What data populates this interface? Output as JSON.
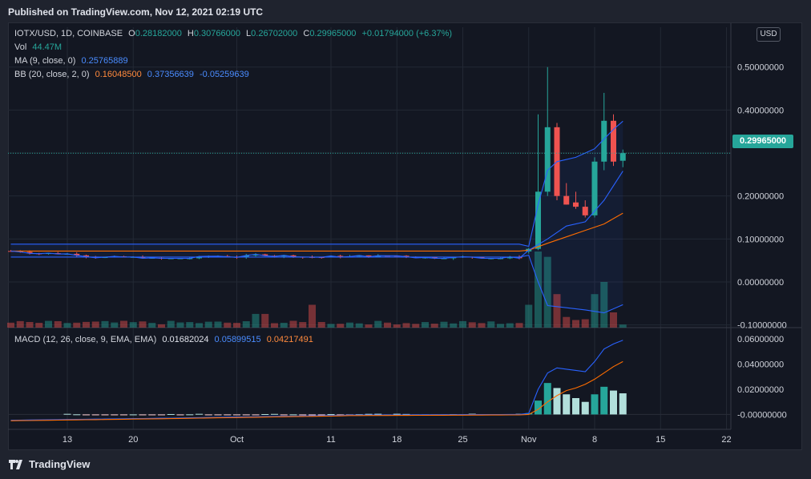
{
  "header": {
    "published": "Published on TradingView.com, Nov 12, 2021 02:19 UTC"
  },
  "footer": {
    "brand": "TradingView"
  },
  "symbol": {
    "title": "IOTX/USD, 1D, COINBASE",
    "open_label": "O",
    "open": "0.28182000",
    "high_label": "H",
    "high": "0.30766000",
    "low_label": "L",
    "low": "0.26702000",
    "close_label": "C",
    "close": "0.29965000",
    "change": "+0.01794000 (+6.37%)"
  },
  "indicators": {
    "vol_label": "Vol",
    "vol_value": "44.47M",
    "ma_label": "MA (9, close, 0)",
    "ma_value": "0.25765889",
    "bb_label": "BB (20, close, 2, 0)",
    "bb_basis": "0.16048500",
    "bb_upper": "0.37356639",
    "bb_lower": "-0.05259639",
    "macd_label": "MACD (12, 26, close, 9, EMA, EMA)",
    "macd_hist": "0.01682024",
    "macd_line": "0.05899515",
    "macd_signal": "0.04217491"
  },
  "currency_button": "USD",
  "last_price_tag": "0.29965000",
  "colors": {
    "up": "#26a69a",
    "down": "#ef5350",
    "ma": "#2962ff",
    "bb_basis": "#ff6d00",
    "bb_band": "#2962ff",
    "macd": "#2962ff",
    "signal": "#ff6d00",
    "hist": "#b2dfdb"
  },
  "chart_data": [
    {
      "type": "candlestick",
      "title": "IOTX/USD, 1D, COINBASE",
      "ylim": [
        -0.11,
        0.52
      ],
      "y_ticks": [
        "0.50000000",
        "0.40000000",
        "0.20000000",
        "0.10000000",
        "0.00000000",
        "-0.10000000"
      ],
      "x_ticks": [
        "13",
        "20",
        "Oct",
        "11",
        "18",
        "25",
        "Nov",
        "8",
        "15",
        "22"
      ],
      "x_tick_days": [
        0,
        7,
        18,
        28,
        35,
        42,
        49,
        56,
        63,
        70
      ],
      "candles_before_rally": {
        "start_day": -6,
        "end_day": 48,
        "price_range": [
          0.055,
          0.082
        ]
      },
      "rally": [
        {
          "day": 49,
          "o": 0.071,
          "h": 0.079,
          "l": 0.066,
          "c": 0.077
        },
        {
          "day": 50,
          "o": 0.077,
          "h": 0.39,
          "l": 0.074,
          "c": 0.21
        },
        {
          "day": 51,
          "o": 0.21,
          "h": 0.5,
          "l": 0.2,
          "c": 0.36
        },
        {
          "day": 52,
          "o": 0.36,
          "h": 0.37,
          "l": 0.19,
          "c": 0.2
        },
        {
          "day": 53,
          "o": 0.2,
          "h": 0.23,
          "l": 0.18,
          "c": 0.18
        },
        {
          "day": 54,
          "o": 0.185,
          "h": 0.21,
          "l": 0.17,
          "c": 0.175
        },
        {
          "day": 55,
          "o": 0.175,
          "h": 0.19,
          "l": 0.15,
          "c": 0.155
        },
        {
          "day": 56,
          "o": 0.155,
          "h": 0.29,
          "l": 0.15,
          "c": 0.28
        },
        {
          "day": 57,
          "o": 0.28,
          "h": 0.44,
          "l": 0.26,
          "c": 0.375
        },
        {
          "day": 58,
          "o": 0.375,
          "h": 0.39,
          "l": 0.27,
          "c": 0.28
        },
        {
          "day": 59,
          "o": 0.282,
          "h": 0.308,
          "l": 0.267,
          "c": 0.2997
        }
      ],
      "volume_rally": [
        {
          "day": 49,
          "v": 0.3,
          "up": true
        },
        {
          "day": 50,
          "v": 1.0,
          "up": true
        },
        {
          "day": 51,
          "v": 0.93,
          "up": true
        },
        {
          "day": 52,
          "v": 0.44,
          "up": false
        },
        {
          "day": 53,
          "v": 0.14,
          "up": false
        },
        {
          "day": 54,
          "v": 0.1,
          "up": false
        },
        {
          "day": 55,
          "v": 0.11,
          "up": false
        },
        {
          "day": 56,
          "v": 0.44,
          "up": true
        },
        {
          "day": 57,
          "v": 0.6,
          "up": true
        },
        {
          "day": 58,
          "v": 0.2,
          "up": false
        },
        {
          "day": 59,
          "v": 0.04,
          "up": true
        }
      ],
      "ma_recent": [
        [
          49,
          0.074
        ],
        [
          51,
          0.1
        ],
        [
          53,
          0.13
        ],
        [
          55,
          0.14
        ],
        [
          57,
          0.19
        ],
        [
          59,
          0.258
        ]
      ],
      "bb_basis_recent": [
        [
          49,
          0.074
        ],
        [
          51,
          0.09
        ],
        [
          53,
          0.105
        ],
        [
          55,
          0.12
        ],
        [
          57,
          0.135
        ],
        [
          59,
          0.16
        ]
      ],
      "bb_upper_recent": [
        [
          49,
          0.083
        ],
        [
          50,
          0.18
        ],
        [
          51,
          0.26
        ],
        [
          52,
          0.28
        ],
        [
          54,
          0.29
        ],
        [
          56,
          0.31
        ],
        [
          58,
          0.355
        ],
        [
          59,
          0.374
        ]
      ],
      "bb_lower_recent": [
        [
          49,
          0.062
        ],
        [
          50,
          0.0
        ],
        [
          51,
          -0.055
        ],
        [
          53,
          -0.06
        ],
        [
          55,
          -0.065
        ],
        [
          57,
          -0.072
        ],
        [
          59,
          -0.053
        ]
      ]
    },
    {
      "type": "macd",
      "title": "MACD (12, 26, close, 9, EMA, EMA)",
      "ylim": [
        -0.008,
        0.062
      ],
      "y_ticks": [
        "0.06000000",
        "0.04000000",
        "0.02000000",
        "-0.00000000"
      ],
      "histogram_rally": [
        [
          49,
          0.001
        ],
        [
          50,
          0.011
        ],
        [
          51,
          0.025
        ],
        [
          52,
          0.021
        ],
        [
          53,
          0.016
        ],
        [
          54,
          0.013
        ],
        [
          55,
          0.01
        ],
        [
          56,
          0.016
        ],
        [
          57,
          0.022
        ],
        [
          58,
          0.019
        ],
        [
          59,
          0.0168
        ]
      ],
      "macd_rally": [
        [
          49,
          0.001
        ],
        [
          50,
          0.02
        ],
        [
          51,
          0.033
        ],
        [
          52,
          0.037
        ],
        [
          53,
          0.036
        ],
        [
          54,
          0.035
        ],
        [
          55,
          0.034
        ],
        [
          56,
          0.042
        ],
        [
          57,
          0.052
        ],
        [
          58,
          0.056
        ],
        [
          59,
          0.059
        ]
      ],
      "signal_rally": [
        [
          49,
          0.0
        ],
        [
          50,
          0.004
        ],
        [
          51,
          0.01
        ],
        [
          52,
          0.015
        ],
        [
          53,
          0.019
        ],
        [
          54,
          0.021
        ],
        [
          55,
          0.024
        ],
        [
          56,
          0.028
        ],
        [
          57,
          0.033
        ],
        [
          58,
          0.038
        ],
        [
          59,
          0.042
        ]
      ]
    }
  ]
}
